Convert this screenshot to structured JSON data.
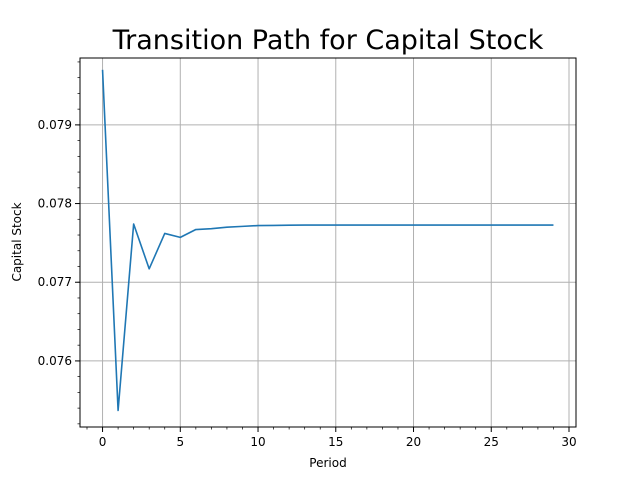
{
  "chart_data": {
    "type": "line",
    "title": "Transition Path for Capital Stock",
    "xlabel": "Period",
    "ylabel": "Capital Stock",
    "xlim": [
      -1.45,
      30.45
    ],
    "ylim": [
      0.07516,
      0.07985
    ],
    "xticks": [
      0,
      5,
      10,
      15,
      20,
      25,
      30
    ],
    "xtick_labels": [
      "0",
      "5",
      "10",
      "15",
      "20",
      "25",
      "30"
    ],
    "yticks": [
      0.076,
      0.077,
      0.078,
      0.079
    ],
    "ytick_labels": [
      "0.076",
      "0.077",
      "0.078",
      "0.079"
    ],
    "grid": true,
    "color": "#1f77b4",
    "series": [
      {
        "x": [
          0,
          1,
          2,
          3,
          4,
          5,
          6,
          7,
          8,
          9,
          10,
          11,
          12,
          13,
          14,
          15,
          16,
          17,
          18,
          19,
          20,
          21,
          22,
          23,
          24,
          25,
          26,
          27,
          28,
          29
        ],
        "values": [
          0.0797,
          0.07537,
          0.07774,
          0.07717,
          0.07762,
          0.07757,
          0.07767,
          0.07768,
          0.0777,
          0.07771,
          0.07772,
          0.077722,
          0.077725,
          0.077726,
          0.077727,
          0.077727,
          0.077727,
          0.077727,
          0.077727,
          0.077727,
          0.077727,
          0.077727,
          0.077727,
          0.077727,
          0.077727,
          0.077727,
          0.077727,
          0.077727,
          0.077727,
          0.077727
        ]
      }
    ]
  }
}
